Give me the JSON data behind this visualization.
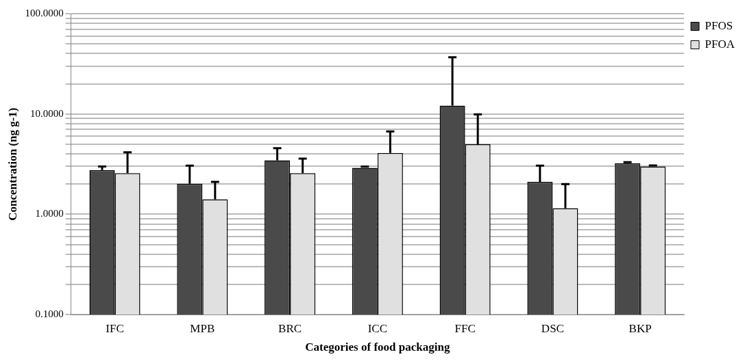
{
  "chart_data": {
    "type": "bar",
    "xlabel": "Categories of food packaging",
    "ylabel": "Concentration (ng g-1)",
    "categories": [
      "IFC",
      "MPB",
      "BRC",
      "ICC",
      "FFC",
      "DSC",
      "BKP"
    ],
    "series": [
      {
        "name": "PFOS",
        "color": "#4a4a4a",
        "values": [
          2.76,
          2.02,
          3.45,
          2.91,
          12.1,
          2.11,
          3.23
        ],
        "errors": [
          [
            2.76,
            3.0
          ],
          [
            2.02,
            3.06
          ],
          [
            3.45,
            4.56
          ],
          [
            2.91,
            2.99
          ],
          [
            12.1,
            36.8
          ],
          [
            2.11,
            3.06
          ],
          [
            3.23,
            3.31
          ]
        ]
      },
      {
        "name": "PFOA",
        "color": "#e0e0e0",
        "values": [
          2.57,
          1.41,
          2.57,
          4.09,
          4.99,
          1.15,
          3.0
        ],
        "errors": [
          [
            2.57,
            4.16
          ],
          [
            1.41,
            2.11
          ],
          [
            2.57,
            3.59
          ],
          [
            4.09,
            6.7
          ],
          [
            4.99,
            9.9
          ],
          [
            1.15,
            2.0
          ],
          [
            3.0,
            3.07
          ]
        ]
      }
    ],
    "log": "y",
    "ylim": [
      0.1,
      100
    ],
    "yticks": [
      {
        "value": 0.1,
        "label": "0.1000"
      },
      {
        "value": 0.2,
        "label": null
      },
      {
        "value": 0.3,
        "label": null
      },
      {
        "value": 0.4,
        "label": null
      },
      {
        "value": 0.5,
        "label": null
      },
      {
        "value": 0.6,
        "label": null
      },
      {
        "value": 0.7,
        "label": null
      },
      {
        "value": 0.8,
        "label": null
      },
      {
        "value": 0.9,
        "label": null
      },
      {
        "value": 1,
        "label": "1.0000"
      },
      {
        "value": 2,
        "label": null
      },
      {
        "value": 3,
        "label": null
      },
      {
        "value": 4,
        "label": null
      },
      {
        "value": 5,
        "label": null
      },
      {
        "value": 6,
        "label": null
      },
      {
        "value": 7,
        "label": null
      },
      {
        "value": 8,
        "label": null
      },
      {
        "value": 9,
        "label": null
      },
      {
        "value": 10,
        "label": "10.0000"
      },
      {
        "value": 20,
        "label": null
      },
      {
        "value": 30,
        "label": null
      },
      {
        "value": 40,
        "label": null
      },
      {
        "value": 50,
        "label": null
      },
      {
        "value": 60,
        "label": null
      },
      {
        "value": 70,
        "label": null
      },
      {
        "value": 80,
        "label": null
      },
      {
        "value": 90,
        "label": null
      },
      {
        "value": 100,
        "label": "100.0000"
      }
    ],
    "grid": "y",
    "legend": "top right"
  }
}
